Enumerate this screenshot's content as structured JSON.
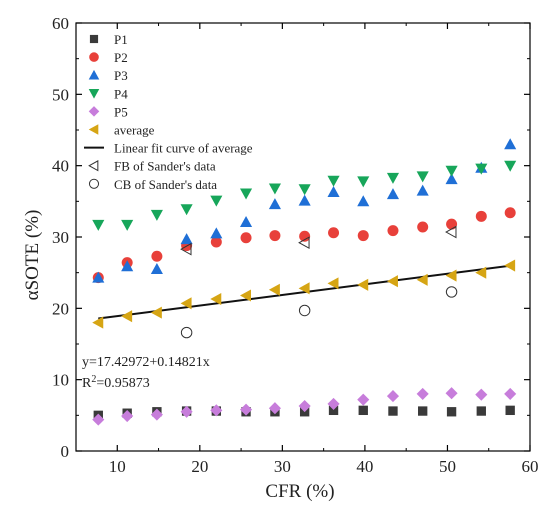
{
  "chart_data": {
    "type": "scatter",
    "xlabel": "CFR (%)",
    "ylabel": "αSOTE (%)",
    "xlim": [
      5,
      60
    ],
    "ylim": [
      0,
      60
    ],
    "xticks": [
      10,
      20,
      30,
      40,
      50,
      60
    ],
    "yticks": [
      0,
      10,
      20,
      30,
      40,
      50,
      60
    ],
    "grid": false,
    "legend_position": "top-left",
    "series": [
      {
        "name": "P1",
        "marker": "square",
        "color": "#3a3a3a",
        "x": [
          7.7,
          11.2,
          14.8,
          18.4,
          22.0,
          25.6,
          29.1,
          32.7,
          36.2,
          39.8,
          43.4,
          47.0,
          50.5,
          54.1,
          57.6
        ],
        "y": [
          5.0,
          5.3,
          5.5,
          5.6,
          5.6,
          5.5,
          5.5,
          5.5,
          5.7,
          5.7,
          5.6,
          5.6,
          5.5,
          5.6,
          5.7
        ]
      },
      {
        "name": "P2",
        "marker": "circle",
        "color": "#e8403a",
        "x": [
          7.7,
          11.2,
          14.8,
          18.4,
          22.0,
          25.6,
          29.1,
          32.7,
          36.2,
          39.8,
          43.4,
          47.0,
          50.5,
          54.1,
          57.6
        ],
        "y": [
          24.3,
          26.4,
          27.3,
          28.8,
          29.3,
          29.9,
          30.2,
          30.1,
          30.6,
          30.2,
          30.9,
          31.4,
          31.8,
          32.9,
          33.4
        ]
      },
      {
        "name": "P3",
        "marker": "triangle-up",
        "color": "#1f6fd6",
        "x": [
          7.7,
          11.2,
          14.8,
          18.4,
          22.0,
          25.6,
          29.1,
          32.7,
          36.2,
          39.8,
          43.4,
          47.0,
          50.5,
          54.1,
          57.6
        ],
        "y": [
          24.3,
          25.9,
          25.5,
          29.7,
          30.5,
          32.1,
          34.6,
          35.1,
          36.3,
          35.0,
          36.0,
          36.5,
          38.1,
          39.7,
          43.0
        ]
      },
      {
        "name": "P4",
        "marker": "triangle-down",
        "color": "#17a65a",
        "x": [
          7.7,
          11.2,
          14.8,
          18.4,
          22.0,
          25.6,
          29.1,
          32.7,
          36.2,
          39.8,
          43.4,
          47.0,
          50.5,
          54.1,
          57.6
        ],
        "y": [
          31.7,
          31.7,
          33.1,
          33.9,
          35.1,
          36.1,
          36.8,
          36.7,
          37.9,
          37.8,
          38.3,
          38.5,
          39.3,
          39.6,
          40.0
        ]
      },
      {
        "name": "P5",
        "marker": "diamond",
        "color": "#c77ddb",
        "x": [
          7.7,
          11.2,
          14.8,
          18.4,
          22.0,
          25.6,
          29.1,
          32.7,
          36.2,
          39.8,
          43.4,
          47.0,
          50.5,
          54.1,
          57.6
        ],
        "y": [
          4.4,
          4.9,
          5.1,
          5.5,
          5.7,
          5.8,
          6.0,
          6.3,
          6.6,
          7.2,
          7.7,
          8.0,
          8.1,
          7.9,
          8.0
        ]
      },
      {
        "name": "average",
        "marker": "triangle-left",
        "color": "#d6a514",
        "x": [
          7.7,
          11.2,
          14.8,
          18.4,
          22.0,
          25.6,
          29.1,
          32.7,
          36.2,
          39.8,
          43.4,
          47.0,
          50.5,
          54.1,
          57.6
        ],
        "y": [
          18.0,
          18.9,
          19.4,
          20.7,
          21.3,
          21.8,
          22.6,
          22.8,
          23.5,
          23.3,
          23.8,
          24.0,
          24.6,
          25.0,
          26.0
        ]
      },
      {
        "name": "Linear fit curve of average",
        "marker": "line",
        "color": "#111111",
        "x": [
          7.7,
          57.6
        ],
        "y": [
          18.57,
          25.97
        ]
      },
      {
        "name": "FB of Sander's data",
        "marker": "triangle-left-open",
        "color": "#333333",
        "x": [
          18.4,
          32.7,
          50.5
        ],
        "y": [
          28.3,
          29.2,
          30.7
        ]
      },
      {
        "name": "CB of Sander's data",
        "marker": "circle-open",
        "color": "#333333",
        "x": [
          18.4,
          32.7,
          50.5
        ],
        "y": [
          16.6,
          19.7,
          22.3
        ]
      }
    ],
    "annotations": {
      "equation": "y=17.42972+0.14821x",
      "r2_prefix": "R",
      "r2_sup": "2",
      "r2_value": "=0.95873"
    }
  }
}
